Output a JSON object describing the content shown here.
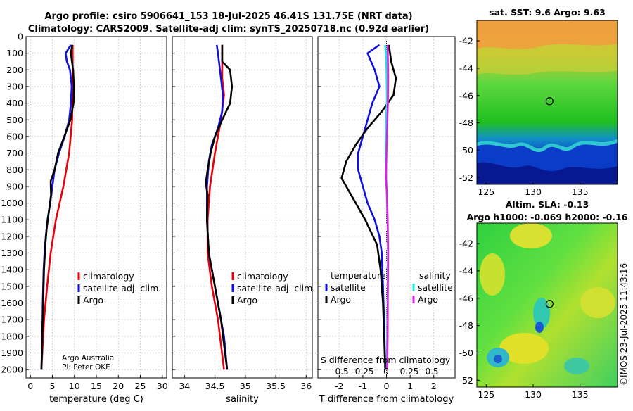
{
  "title": {
    "line1": "Argo profile: csiro 5906641_153 18-Jul-2025 46.41S 131.75E (NRT data)",
    "line2": "Climatology: CARS2009. Satellite-adj clim: synTS_20250718.nc (0.92d earlier)"
  },
  "colors": {
    "climatology": "#e8000b",
    "satellite": "#1010e0",
    "argo": "#000000",
    "sat_cyan": "#20e0e0",
    "argo_magenta": "#e020e0",
    "grid": "#c8c8c8"
  },
  "credits": {
    "line1": "Argo Australia",
    "line2": "PI: Peter OKE"
  },
  "timestamp": "©IMOS 23-Jul-2025 11:43:16",
  "chart_data": [
    {
      "type": "line",
      "name": "temperature",
      "xlabel": "temperature (deg C)",
      "ylabel": "",
      "xlim": [
        -1,
        31
      ],
      "ylim": [
        2050,
        0
      ],
      "xticks": [
        0,
        5,
        10,
        15,
        20,
        25,
        30
      ],
      "yticks": [
        0,
        100,
        200,
        300,
        400,
        500,
        600,
        700,
        800,
        900,
        1000,
        1100,
        1200,
        1300,
        1400,
        1500,
        1600,
        1700,
        1800,
        1900,
        2000
      ],
      "legend": [
        "climatology",
        "satellite-adj. clim.",
        "Argo"
      ],
      "series": [
        {
          "name": "climatology",
          "color": "#e8000b",
          "points": [
            [
              9.6,
              50
            ],
            [
              9.6,
              300
            ],
            [
              9.5,
              500
            ],
            [
              8.8,
              700
            ],
            [
              7.5,
              900
            ],
            [
              5.8,
              1100
            ],
            [
              4.6,
              1300
            ],
            [
              3.8,
              1500
            ],
            [
              3.1,
              1700
            ],
            [
              2.7,
              1900
            ],
            [
              2.5,
              2000
            ]
          ]
        },
        {
          "name": "satellite-adj. clim.",
          "color": "#1010e0",
          "points": [
            [
              9.2,
              50
            ],
            [
              8.0,
              100
            ],
            [
              8.3,
              150
            ],
            [
              9.0,
              200
            ],
            [
              9.4,
              300
            ],
            [
              9.2,
              400
            ],
            [
              8.8,
              500
            ],
            [
              7.8,
              600
            ],
            [
              6.5,
              700
            ],
            [
              5.5,
              800
            ],
            [
              5.0,
              900
            ],
            [
              4.5,
              1000
            ],
            [
              3.9,
              1100
            ],
            [
              3.5,
              1200
            ],
            [
              3.2,
              1300
            ],
            [
              3.0,
              1400
            ],
            [
              2.8,
              1600
            ],
            [
              2.7,
              1800
            ],
            [
              2.5,
              2000
            ]
          ]
        },
        {
          "name": "Argo",
          "color": "#000000",
          "points": [
            [
              9.5,
              50
            ],
            [
              9.2,
              100
            ],
            [
              9.7,
              200
            ],
            [
              9.9,
              300
            ],
            [
              9.8,
              400
            ],
            [
              9.1,
              500
            ],
            [
              7.7,
              600
            ],
            [
              6.3,
              700
            ],
            [
              5.5,
              800
            ],
            [
              4.6,
              870
            ],
            [
              4.7,
              950
            ],
            [
              4.2,
              1050
            ],
            [
              3.7,
              1150
            ],
            [
              3.4,
              1250
            ],
            [
              3.1,
              1400
            ],
            [
              2.9,
              1600
            ],
            [
              2.7,
              1800
            ],
            [
              2.5,
              2000
            ]
          ]
        }
      ]
    },
    {
      "type": "line",
      "name": "salinity",
      "xlabel": "salinity",
      "xlim": [
        33.8,
        36.1
      ],
      "ylim": [
        2050,
        0
      ],
      "xticks": [
        34,
        34.5,
        35,
        35.5,
        36
      ],
      "legend": [
        "climatology",
        "satellite-adj. clim.",
        "Argo"
      ],
      "series": [
        {
          "name": "climatology",
          "color": "#e8000b",
          "points": [
            [
              34.62,
              50
            ],
            [
              34.62,
              250
            ],
            [
              34.65,
              350
            ],
            [
              34.6,
              500
            ],
            [
              34.5,
              700
            ],
            [
              34.42,
              900
            ],
            [
              34.38,
              1100
            ],
            [
              34.38,
              1300
            ],
            [
              34.45,
              1500
            ],
            [
              34.55,
              1700
            ],
            [
              34.65,
              2000
            ]
          ]
        },
        {
          "name": "satellite-adj. clim.",
          "color": "#1010e0",
          "points": [
            [
              34.53,
              50
            ],
            [
              34.55,
              100
            ],
            [
              34.6,
              250
            ],
            [
              34.63,
              350
            ],
            [
              34.62,
              450
            ],
            [
              34.55,
              550
            ],
            [
              34.45,
              650
            ],
            [
              34.4,
              750
            ],
            [
              34.37,
              900
            ],
            [
              34.37,
              1100
            ],
            [
              34.4,
              1300
            ],
            [
              34.5,
              1500
            ],
            [
              34.65,
              1800
            ],
            [
              34.7,
              2000
            ]
          ]
        },
        {
          "name": "Argo",
          "color": "#000000",
          "points": [
            [
              34.62,
              50
            ],
            [
              34.62,
              150
            ],
            [
              34.75,
              200
            ],
            [
              34.78,
              300
            ],
            [
              34.75,
              400
            ],
            [
              34.62,
              500
            ],
            [
              34.5,
              600
            ],
            [
              34.43,
              700
            ],
            [
              34.38,
              800
            ],
            [
              34.35,
              880
            ],
            [
              34.38,
              950
            ],
            [
              34.37,
              1100
            ],
            [
              34.4,
              1300
            ],
            [
              34.5,
              1500
            ],
            [
              34.6,
              1700
            ],
            [
              34.7,
              2000
            ]
          ]
        }
      ]
    },
    {
      "type": "line",
      "name": "differences",
      "xlabel": "T difference from climatology",
      "xlabel_top": "S difference from climatology",
      "xlim": [
        -2.9,
        2.9
      ],
      "ylim": [
        2050,
        0
      ],
      "xticks": [
        -2,
        -1,
        0,
        1,
        2
      ],
      "xticks_salinity": [
        "-0.5",
        "-0.25",
        "0",
        "0.25",
        "0.5"
      ],
      "legend_temperature_title": "temperature",
      "legend_salinity_title": "salinity",
      "legend_temperature": [
        "satellite",
        "Argo"
      ],
      "legend_salinity": [
        "satellite",
        "Argo"
      ],
      "series": [
        {
          "name": "temperature satellite",
          "color": "#1010e0",
          "points": [
            [
              -0.3,
              50
            ],
            [
              -0.8,
              100
            ],
            [
              -0.5,
              200
            ],
            [
              -0.3,
              300
            ],
            [
              -0.6,
              400
            ],
            [
              -0.8,
              500
            ],
            [
              -1.0,
              600
            ],
            [
              -1.2,
              700
            ],
            [
              -1.2,
              800
            ],
            [
              -1.0,
              900
            ],
            [
              -0.8,
              1000
            ],
            [
              -0.5,
              1100
            ],
            [
              -0.3,
              1200
            ],
            [
              -0.2,
              1300
            ],
            [
              -0.15,
              1500
            ],
            [
              -0.1,
              1700
            ],
            [
              -0.05,
              2000
            ]
          ]
        },
        {
          "name": "temperature Argo",
          "color": "#000000",
          "points": [
            [
              0.1,
              50
            ],
            [
              0.2,
              150
            ],
            [
              0.4,
              250
            ],
            [
              0.3,
              350
            ],
            [
              -0.2,
              450
            ],
            [
              -0.8,
              550
            ],
            [
              -1.3,
              650
            ],
            [
              -1.7,
              750
            ],
            [
              -1.9,
              850
            ],
            [
              -1.5,
              950
            ],
            [
              -0.9,
              1100
            ],
            [
              -0.4,
              1250
            ],
            [
              -0.25,
              1400
            ],
            [
              -0.15,
              1600
            ],
            [
              -0.05,
              2000
            ]
          ]
        },
        {
          "name": "salinity satellite",
          "color": "#20e0e0",
          "points": [
            [
              -0.06,
              50
            ],
            [
              -0.02,
              100
            ],
            [
              0.0,
              200
            ],
            [
              0.02,
              400
            ],
            [
              -0.02,
              500
            ],
            [
              -0.03,
              700
            ],
            [
              0.0,
              900
            ],
            [
              0.05,
              1100
            ],
            [
              0.06,
              1300
            ],
            [
              0.05,
              1500
            ],
            [
              0.03,
              1800
            ],
            [
              0.02,
              2000
            ]
          ]
        },
        {
          "name": "salinity Argo",
          "color": "#e020e0",
          "points": [
            [
              0.05,
              50
            ],
            [
              0.07,
              250
            ],
            [
              0.06,
              400
            ],
            [
              0.04,
              500
            ],
            [
              0.0,
              700
            ],
            [
              -0.02,
              850
            ],
            [
              0.02,
              950
            ],
            [
              0.05,
              1100
            ],
            [
              0.07,
              1300
            ],
            [
              0.06,
              1500
            ],
            [
              0.05,
              1800
            ],
            [
              0.03,
              2000
            ]
          ]
        }
      ]
    },
    {
      "type": "heatmap",
      "name": "sat-sst",
      "title": "sat. SST: 9.6 Argo: 9.63",
      "xlim": [
        124,
        139
      ],
      "ylim": [
        -52.5,
        -40.5
      ],
      "xticks": [
        125,
        130,
        135
      ],
      "yticks": [
        -42,
        -44,
        -46,
        -48,
        -50,
        -52
      ],
      "marker": {
        "lon": 131.75,
        "lat": -46.41
      }
    },
    {
      "type": "heatmap",
      "name": "altimetry-sla",
      "title": "Altim. SLA: -0.13",
      "subtitle": "Argo h1000: -0.069 h2000: -0.16",
      "xlim": [
        124,
        139
      ],
      "ylim": [
        -52.5,
        -40.5
      ],
      "xticks": [
        125,
        130,
        135
      ],
      "yticks": [
        -42,
        -44,
        -46,
        -48,
        -50,
        -52
      ],
      "marker": {
        "lon": 131.75,
        "lat": -46.41
      }
    }
  ]
}
